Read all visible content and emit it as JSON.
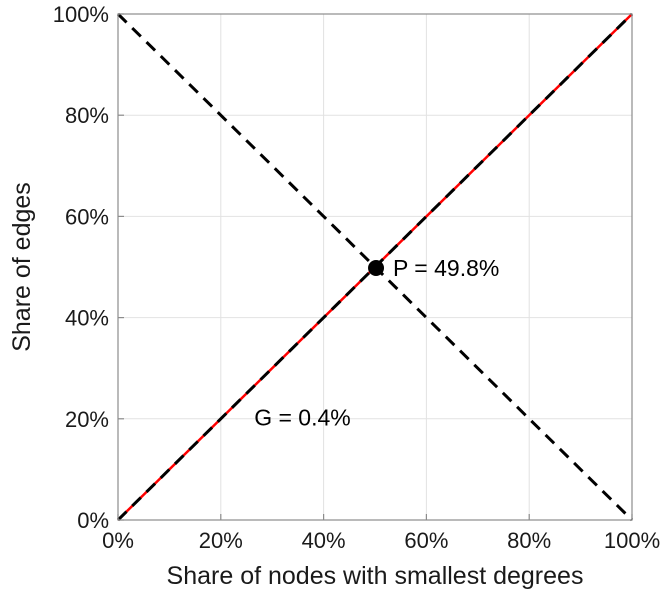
{
  "figure": {
    "background": "#ffffff"
  },
  "chart_data": {
    "type": "line",
    "title": "",
    "xlabel": "Share of nodes with smallest degrees",
    "ylabel": "Share of edges",
    "xlim": [
      0,
      100
    ],
    "ylim": [
      0,
      100
    ],
    "xticks": [
      0,
      20,
      40,
      60,
      80,
      100
    ],
    "yticks": [
      0,
      20,
      40,
      60,
      80,
      100
    ],
    "tick_suffix": "%",
    "grid": true,
    "grid_color": "#e2e2e2",
    "axis_color": "#8c8c8c",
    "tick_label_color": "#1a1a1a",
    "series": [
      {
        "name": "lorenz-curve",
        "color": "#ff0000",
        "style": "solid",
        "width": 2.5,
        "x": [
          0,
          100
        ],
        "y": [
          0,
          100
        ]
      },
      {
        "name": "equality-diagonal",
        "color": "#000000",
        "style": "dashed",
        "width": 3,
        "x": [
          0,
          100
        ],
        "y": [
          0,
          100
        ]
      },
      {
        "name": "anti-diagonal",
        "color": "#000000",
        "style": "dashed",
        "width": 3,
        "x": [
          0,
          100
        ],
        "y": [
          100,
          0
        ]
      }
    ],
    "point": {
      "x": 50.2,
      "y": 49.8,
      "color": "#000000",
      "radius": 8
    },
    "annotations": [
      {
        "name": "p-label",
        "text": "P = 49.8%",
        "x": 53.5,
        "y": 49.8,
        "anchor": "start"
      },
      {
        "name": "g-label",
        "text": "G = 0.4%",
        "x": 26.5,
        "y": 20.3,
        "anchor": "start"
      }
    ]
  }
}
